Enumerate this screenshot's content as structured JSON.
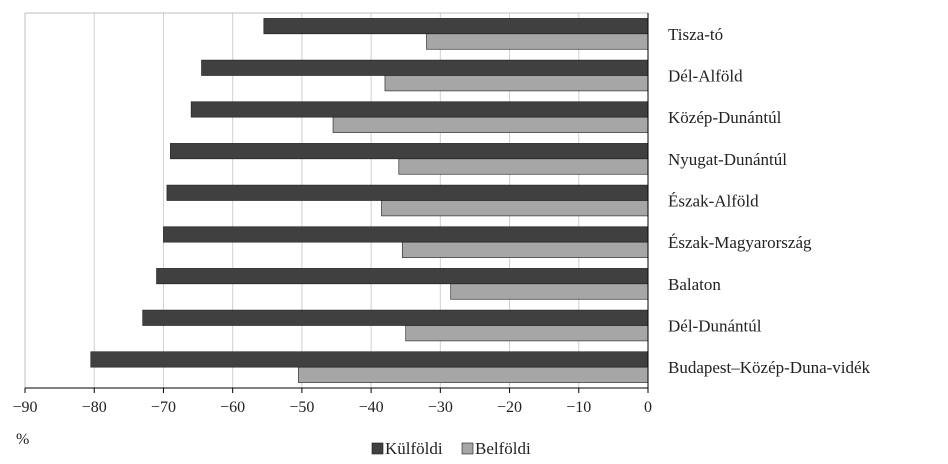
{
  "chart_data": {
    "type": "bar",
    "orientation": "horizontal",
    "categories": [
      "Tisza-tó",
      "Dél-Alföld",
      "Közép-Dunántúl",
      "Nyugat-Dunántúl",
      "Észak-Alföld",
      "Észak-Magyarország",
      "Balaton",
      "Dél-Dunántúl",
      "Budapest–Közép-Duna-vidék"
    ],
    "series": [
      {
        "name": "Külföldi",
        "color": "#404040",
        "values": [
          -55.5,
          -64.5,
          -66.0,
          -69.0,
          -69.5,
          -70.0,
          -71.0,
          -73.0,
          -80.5
        ]
      },
      {
        "name": "Belföldi",
        "color": "#a6a6a6",
        "values": [
          -32.0,
          -38.0,
          -45.5,
          -36.0,
          -38.5,
          -35.5,
          -28.5,
          -35.0,
          -50.5
        ]
      }
    ],
    "xlim": [
      -90,
      0
    ],
    "xticks": [
      "−90",
      "−80",
      "−70",
      "−60",
      "−50",
      "−40",
      "−30",
      "−20",
      "−10",
      "0"
    ],
    "xunit": "%",
    "grid": true,
    "legend_position": "bottom-center"
  }
}
